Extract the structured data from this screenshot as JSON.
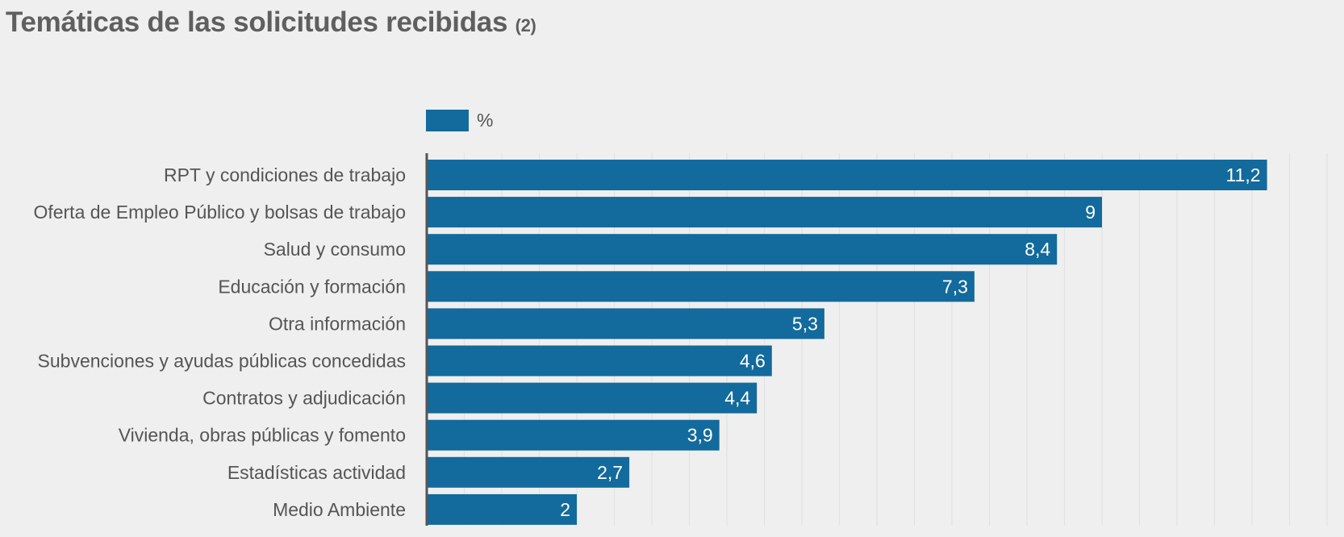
{
  "title": {
    "main": "Temáticas de las solicitudes recibidas",
    "note": "(2)"
  },
  "legend": {
    "label": "%"
  },
  "colors": {
    "bar": "#136a9c",
    "background": "#efefef",
    "grid": "#e2e2e2",
    "axis": "#555555",
    "category_text": "#555555",
    "value_text": "#ffffff"
  },
  "chart_data": {
    "type": "bar",
    "orientation": "horizontal",
    "title": "Temáticas de las solicitudes recibidas (2)",
    "xlabel": "",
    "ylabel": "",
    "xlim": [
      0,
      12
    ],
    "grid": true,
    "legend_position": "top-left",
    "categories": [
      "RPT y condiciones de trabajo",
      "Oferta de Empleo Público y bolsas de trabajo",
      "Salud y consumo",
      "Educación y formación",
      "Otra información",
      "Subvenciones y ayudas públicas concedidas",
      "Contratos y adjudicación",
      "Vivienda, obras públicas y fomento",
      "Estadísticas actividad",
      "Medio Ambiente"
    ],
    "series": [
      {
        "name": "%",
        "values": [
          11.2,
          9,
          8.4,
          7.3,
          5.3,
          4.6,
          4.4,
          3.9,
          2.7,
          2
        ],
        "labels": [
          "11,2",
          "9",
          "8,4",
          "7,3",
          "5,3",
          "4,6",
          "4,4",
          "3,9",
          "2,7",
          "2"
        ]
      }
    ]
  }
}
